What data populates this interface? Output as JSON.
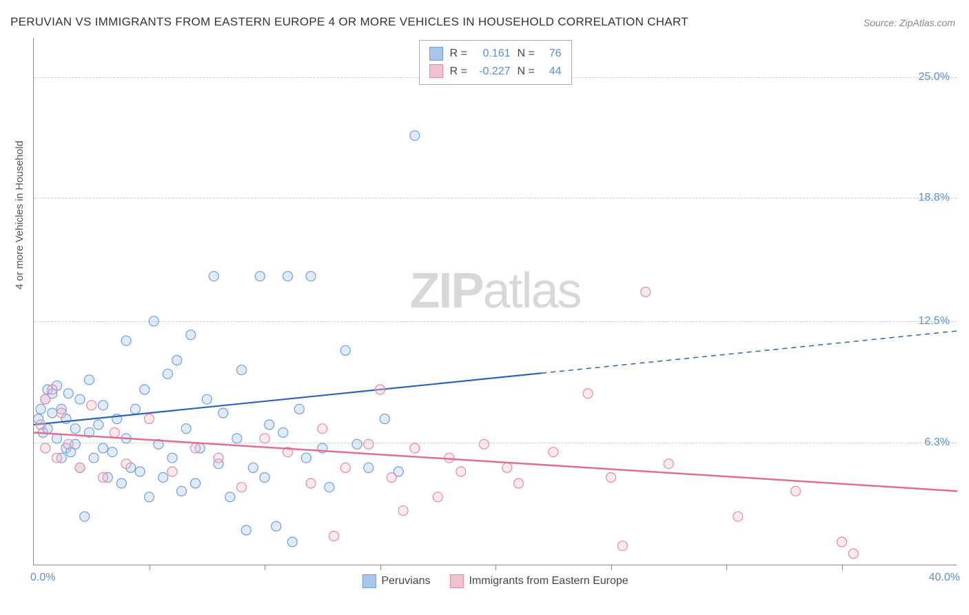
{
  "title": "PERUVIAN VS IMMIGRANTS FROM EASTERN EUROPE 4 OR MORE VEHICLES IN HOUSEHOLD CORRELATION CHART",
  "source": "Source: ZipAtlas.com",
  "ylabel": "4 or more Vehicles in Household",
  "watermark_bold": "ZIP",
  "watermark_light": "atlas",
  "chart": {
    "type": "scatter",
    "xlim": [
      0,
      40
    ],
    "ylim": [
      0,
      27
    ],
    "x_start_label": "0.0%",
    "x_end_label": "40.0%",
    "x_ticks": [
      5,
      10,
      15,
      20,
      25,
      30,
      35
    ],
    "y_gridlines": [
      {
        "value": 6.3,
        "label": "6.3%"
      },
      {
        "value": 12.5,
        "label": "12.5%"
      },
      {
        "value": 18.8,
        "label": "18.8%"
      },
      {
        "value": 25.0,
        "label": "25.0%"
      }
    ],
    "marker_radius": 7,
    "marker_fill_opacity": 0.35,
    "marker_stroke_width": 1.2,
    "background_color": "#ffffff",
    "grid_color": "#cccccc"
  },
  "series": [
    {
      "name": "Peruvians",
      "color_fill": "#a9c6ea",
      "color_stroke": "#6d9fdd",
      "line_color": "#2a63b8",
      "R": "0.161",
      "N": "76",
      "trend": {
        "x1": 0,
        "y1": 7.2,
        "solid_end_x": 22,
        "x2": 40,
        "y2": 12.0
      },
      "points": [
        [
          0.2,
          7.5
        ],
        [
          0.3,
          8.0
        ],
        [
          0.4,
          6.8
        ],
        [
          0.5,
          8.5
        ],
        [
          0.6,
          7.0
        ],
        [
          0.6,
          9.0
        ],
        [
          0.8,
          7.8
        ],
        [
          0.8,
          8.8
        ],
        [
          1.0,
          6.5
        ],
        [
          1.0,
          9.2
        ],
        [
          1.2,
          5.5
        ],
        [
          1.2,
          8.0
        ],
        [
          1.4,
          6.0
        ],
        [
          1.4,
          7.5
        ],
        [
          1.5,
          8.8
        ],
        [
          1.6,
          5.8
        ],
        [
          1.8,
          7.0
        ],
        [
          1.8,
          6.2
        ],
        [
          2.0,
          8.5
        ],
        [
          2.0,
          5.0
        ],
        [
          2.2,
          2.5
        ],
        [
          2.4,
          6.8
        ],
        [
          2.4,
          9.5
        ],
        [
          2.6,
          5.5
        ],
        [
          2.8,
          7.2
        ],
        [
          3.0,
          6.0
        ],
        [
          3.0,
          8.2
        ],
        [
          3.2,
          4.5
        ],
        [
          3.4,
          5.8
        ],
        [
          3.6,
          7.5
        ],
        [
          3.8,
          4.2
        ],
        [
          4.0,
          6.5
        ],
        [
          4.0,
          11.5
        ],
        [
          4.2,
          5.0
        ],
        [
          4.4,
          8.0
        ],
        [
          4.6,
          4.8
        ],
        [
          4.8,
          9.0
        ],
        [
          5.0,
          3.5
        ],
        [
          5.2,
          12.5
        ],
        [
          5.4,
          6.2
        ],
        [
          5.6,
          4.5
        ],
        [
          5.8,
          9.8
        ],
        [
          6.0,
          5.5
        ],
        [
          6.2,
          10.5
        ],
        [
          6.4,
          3.8
        ],
        [
          6.6,
          7.0
        ],
        [
          6.8,
          11.8
        ],
        [
          7.0,
          4.2
        ],
        [
          7.2,
          6.0
        ],
        [
          7.5,
          8.5
        ],
        [
          7.8,
          14.8
        ],
        [
          8.0,
          5.2
        ],
        [
          8.2,
          7.8
        ],
        [
          8.5,
          3.5
        ],
        [
          8.8,
          6.5
        ],
        [
          9.0,
          10.0
        ],
        [
          9.2,
          1.8
        ],
        [
          9.5,
          5.0
        ],
        [
          9.8,
          14.8
        ],
        [
          10.0,
          4.5
        ],
        [
          10.2,
          7.2
        ],
        [
          10.5,
          2.0
        ],
        [
          10.8,
          6.8
        ],
        [
          11.0,
          14.8
        ],
        [
          11.2,
          1.2
        ],
        [
          11.5,
          8.0
        ],
        [
          11.8,
          5.5
        ],
        [
          12.0,
          14.8
        ],
        [
          12.5,
          6.0
        ],
        [
          12.8,
          4.0
        ],
        [
          13.5,
          11.0
        ],
        [
          14.0,
          6.2
        ],
        [
          14.5,
          5.0
        ],
        [
          15.2,
          7.5
        ],
        [
          15.8,
          4.8
        ],
        [
          16.5,
          22.0
        ]
      ]
    },
    {
      "name": "Immigrants from Eastern Europe",
      "color_fill": "#f2c1cd",
      "color_stroke": "#e38ba4",
      "line_color": "#e06f8f",
      "R": "-0.227",
      "N": "44",
      "trend": {
        "x1": 0,
        "y1": 6.8,
        "solid_end_x": 40,
        "x2": 40,
        "y2": 3.8
      },
      "points": [
        [
          0.3,
          7.2
        ],
        [
          0.5,
          8.5
        ],
        [
          0.5,
          6.0
        ],
        [
          0.8,
          9.0
        ],
        [
          1.0,
          5.5
        ],
        [
          1.2,
          7.8
        ],
        [
          1.5,
          6.2
        ],
        [
          2.0,
          5.0
        ],
        [
          2.5,
          8.2
        ],
        [
          3.0,
          4.5
        ],
        [
          3.5,
          6.8
        ],
        [
          4.0,
          5.2
        ],
        [
          5.0,
          7.5
        ],
        [
          6.0,
          4.8
        ],
        [
          7.0,
          6.0
        ],
        [
          8.0,
          5.5
        ],
        [
          9.0,
          4.0
        ],
        [
          10.0,
          6.5
        ],
        [
          11.0,
          5.8
        ],
        [
          12.0,
          4.2
        ],
        [
          12.5,
          7.0
        ],
        [
          13.0,
          1.5
        ],
        [
          13.5,
          5.0
        ],
        [
          14.5,
          6.2
        ],
        [
          15.0,
          9.0
        ],
        [
          15.5,
          4.5
        ],
        [
          16.0,
          2.8
        ],
        [
          16.5,
          6.0
        ],
        [
          17.5,
          3.5
        ],
        [
          18.0,
          5.5
        ],
        [
          18.5,
          4.8
        ],
        [
          19.5,
          6.2
        ],
        [
          20.5,
          5.0
        ],
        [
          21.0,
          4.2
        ],
        [
          22.5,
          5.8
        ],
        [
          24.0,
          8.8
        ],
        [
          25.0,
          4.5
        ],
        [
          25.5,
          1.0
        ],
        [
          26.5,
          14.0
        ],
        [
          27.5,
          5.2
        ],
        [
          30.5,
          2.5
        ],
        [
          33.0,
          3.8
        ],
        [
          35.0,
          1.2
        ],
        [
          35.5,
          0.6
        ]
      ]
    }
  ],
  "correlation_box": {
    "r_label": "R =",
    "n_label": "N ="
  },
  "legend_labels": [
    "Peruvians",
    "Immigrants from Eastern Europe"
  ]
}
